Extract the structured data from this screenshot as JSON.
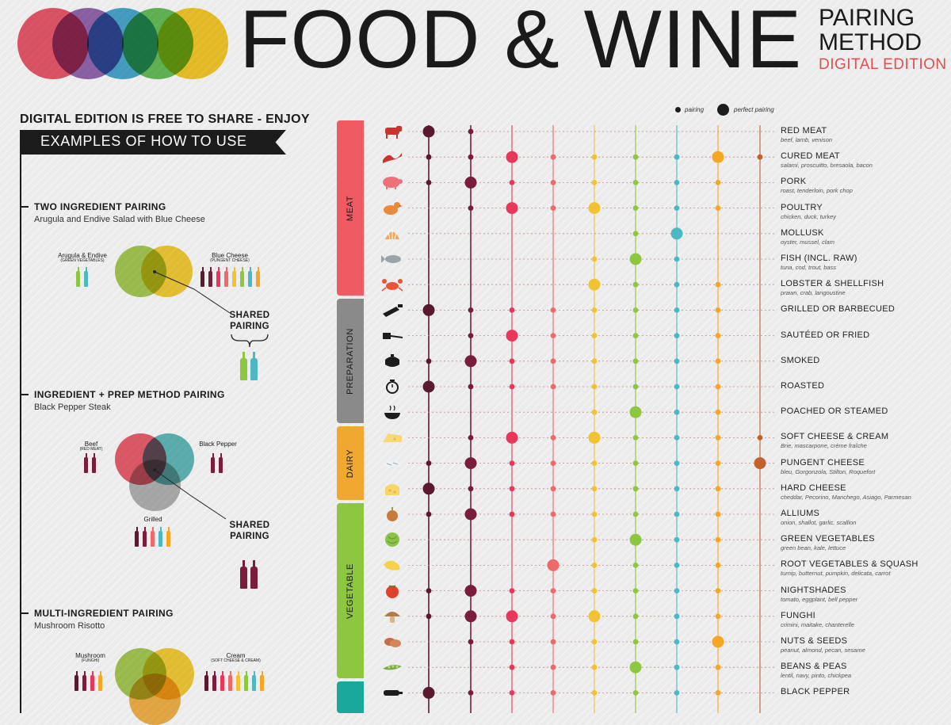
{
  "header": {
    "title": "FOOD & WINE",
    "pairing": "PAIRING",
    "method": "METHOD",
    "edition": "DIGITAL EDITION",
    "logo_colors": [
      "#e84a5f",
      "#8a5aa8",
      "#3aa0c9",
      "#59b84b",
      "#f5c518"
    ]
  },
  "intro": {
    "free_line": "DIGITAL EDITION IS FREE TO SHARE - ENJOY",
    "ribbon": "EXAMPLES OF HOW TO USE"
  },
  "examples": [
    {
      "title": "TWO INGREDIENT PAIRING",
      "subtitle": "Arugula and Endive Salad with Blue Cheese",
      "ingredients": [
        {
          "name": "Arugula & Endive",
          "category": "(GREEN VEGETABLES)"
        },
        {
          "name": "Blue Cheese",
          "category": "(PUNGENT CHEESE)"
        }
      ],
      "shared_line1": "SHARED",
      "shared_line2": "PAIRING"
    },
    {
      "title": "INGREDIENT + PREP METHOD PAIRING",
      "subtitle": "Black Pepper Steak",
      "ingredients": [
        {
          "name": "Beef",
          "category": "(RED MEAT)"
        },
        {
          "name": "Black Pepper",
          "category": ""
        },
        {
          "name": "Grilled",
          "category": ""
        }
      ],
      "shared_line1": "SHARED",
      "shared_line2": "PAIRING"
    },
    {
      "title": "MULTI-INGREDIENT PAIRING",
      "subtitle": "Mushroom Risotto",
      "ingredients": [
        {
          "name": "Mushroom",
          "category": "(FUNGHI)"
        },
        {
          "name": "Cream",
          "category": "(SOFT CHEESE & CREAM)"
        }
      ]
    }
  ],
  "legend": {
    "pairing": "pairing",
    "perfect": "perfect pairing"
  },
  "chart_data": {
    "type": "dot-matrix",
    "wine_column_colors": [
      "#5a1a2e",
      "#7a1d3c",
      "#e8375a",
      "#ee6a6a",
      "#f1c232",
      "#8dc63f",
      "#4cb8c4",
      "#f5a623",
      "#c0622a"
    ],
    "levels": {
      "0": "none",
      "1": "pairing",
      "2": "perfect pairing"
    },
    "categories": [
      {
        "name": "MEAT",
        "color": "#ef5a63"
      },
      {
        "name": "PREPARATION",
        "color": "#8a8a8a"
      },
      {
        "name": "DAIRY",
        "color": "#f0a830"
      },
      {
        "name": "VEGETABLE",
        "color": "#8dc63f"
      },
      {
        "name": "",
        "color": "#19a89a"
      }
    ],
    "rows": [
      {
        "label": "RED MEAT",
        "sub": "beef, lamb, venison",
        "cat": 0,
        "icon": "cow-icon",
        "v": [
          2,
          1,
          0,
          0,
          0,
          0,
          0,
          0,
          0
        ]
      },
      {
        "label": "CURED MEAT",
        "sub": "salami, proscuitto, bresaola, bacon",
        "cat": 0,
        "icon": "bacon-icon",
        "v": [
          1,
          1,
          2,
          1,
          1,
          1,
          1,
          2,
          1
        ]
      },
      {
        "label": "PORK",
        "sub": "roast, tenderloin, pork chop",
        "cat": 0,
        "icon": "pig-icon",
        "v": [
          1,
          2,
          1,
          1,
          1,
          1,
          1,
          1,
          0
        ]
      },
      {
        "label": "POULTRY",
        "sub": "chicken, duck, turkey",
        "cat": 0,
        "icon": "chicken-icon",
        "v": [
          0,
          1,
          2,
          1,
          2,
          1,
          1,
          1,
          0
        ]
      },
      {
        "label": "MOLLUSK",
        "sub": "oyster, mussel, clam",
        "cat": 0,
        "icon": "shell-icon",
        "v": [
          0,
          0,
          0,
          0,
          0,
          1,
          2,
          0,
          0
        ]
      },
      {
        "label": "FISH (INCL. RAW)",
        "sub": "tuna, cod, trout, bass",
        "cat": 0,
        "icon": "fish-icon",
        "v": [
          0,
          0,
          0,
          0,
          1,
          2,
          1,
          0,
          0
        ]
      },
      {
        "label": "LOBSTER & SHELLFISH",
        "sub": "prawn, crab, langoustine",
        "cat": 0,
        "icon": "crab-icon",
        "v": [
          0,
          0,
          0,
          0,
          2,
          1,
          1,
          1,
          0
        ]
      },
      {
        "label": "GRILLED OR BARBECUED",
        "sub": "",
        "cat": 1,
        "icon": "grill-icon",
        "v": [
          2,
          1,
          1,
          1,
          1,
          1,
          1,
          1,
          0
        ]
      },
      {
        "label": "SAUTÉED OR FRIED",
        "sub": "",
        "cat": 1,
        "icon": "spatula-icon",
        "v": [
          0,
          1,
          2,
          1,
          1,
          1,
          1,
          1,
          0
        ]
      },
      {
        "label": "SMOKED",
        "sub": "",
        "cat": 1,
        "icon": "smoker-icon",
        "v": [
          1,
          2,
          1,
          1,
          1,
          1,
          1,
          1,
          0
        ]
      },
      {
        "label": "ROASTED",
        "sub": "",
        "cat": 1,
        "icon": "timer-icon",
        "v": [
          2,
          1,
          1,
          1,
          1,
          1,
          1,
          1,
          0
        ]
      },
      {
        "label": "POACHED OR STEAMED",
        "sub": "",
        "cat": 1,
        "icon": "steam-bowl-icon",
        "v": [
          0,
          0,
          0,
          0,
          1,
          2,
          1,
          1,
          0
        ]
      },
      {
        "label": "SOFT CHEESE & CREAM",
        "sub": "Brie, mascarpone, crème fraîche",
        "cat": 2,
        "icon": "cheese-wedge-icon",
        "v": [
          0,
          1,
          2,
          1,
          2,
          1,
          1,
          1,
          1
        ]
      },
      {
        "label": "PUNGENT CHEESE",
        "sub": "bleu, Gorgonzola, Stilton, Roquefort",
        "cat": 2,
        "icon": "blue-cheese-icon",
        "v": [
          1,
          2,
          1,
          1,
          1,
          1,
          1,
          1,
          2
        ]
      },
      {
        "label": "HARD CHEESE",
        "sub": "cheddar, Pecorino, Manchego, Asiago, Parmesan",
        "cat": 2,
        "icon": "hard-cheese-icon",
        "v": [
          2,
          1,
          1,
          1,
          1,
          1,
          1,
          1,
          0
        ]
      },
      {
        "label": "ALLIUMS",
        "sub": "onion, shallot, garlic, scallion",
        "cat": 3,
        "icon": "onion-icon",
        "v": [
          1,
          2,
          1,
          1,
          1,
          1,
          1,
          1,
          0
        ]
      },
      {
        "label": "GREEN VEGETABLES",
        "sub": "green bean, kale, lettuce",
        "cat": 3,
        "icon": "lettuce-icon",
        "v": [
          0,
          0,
          0,
          0,
          1,
          2,
          1,
          1,
          0
        ]
      },
      {
        "label": "ROOT VEGETABLES & SQUASH",
        "sub": "turnip, butternut, pumpkin, delicata, carrot",
        "cat": 3,
        "icon": "squash-icon",
        "v": [
          0,
          0,
          0,
          2,
          1,
          1,
          1,
          1,
          0
        ]
      },
      {
        "label": "NIGHTSHADES",
        "sub": "tomato, eggplant, bell pepper",
        "cat": 3,
        "icon": "tomato-icon",
        "v": [
          1,
          2,
          1,
          1,
          1,
          1,
          1,
          1,
          0
        ]
      },
      {
        "label": "FUNGHI",
        "sub": "crimini, maitake, chanterelle",
        "cat": 3,
        "icon": "mushroom-icon",
        "v": [
          1,
          2,
          2,
          1,
          2,
          1,
          1,
          1,
          0
        ]
      },
      {
        "label": "NUTS & SEEDS",
        "sub": "peanut, almond, pecan, sesame",
        "cat": 3,
        "icon": "nuts-icon",
        "v": [
          0,
          1,
          1,
          1,
          1,
          1,
          1,
          2,
          0
        ]
      },
      {
        "label": "BEANS & PEAS",
        "sub": "lentil, navy, pinto, chickpea",
        "cat": 3,
        "icon": "peas-icon",
        "v": [
          0,
          0,
          1,
          1,
          1,
          2,
          1,
          1,
          0
        ]
      },
      {
        "label": "BLACK PEPPER",
        "sub": "",
        "cat": 4,
        "icon": "pepper-grinder-icon",
        "v": [
          2,
          1,
          1,
          1,
          1,
          1,
          1,
          1,
          0
        ]
      }
    ]
  }
}
